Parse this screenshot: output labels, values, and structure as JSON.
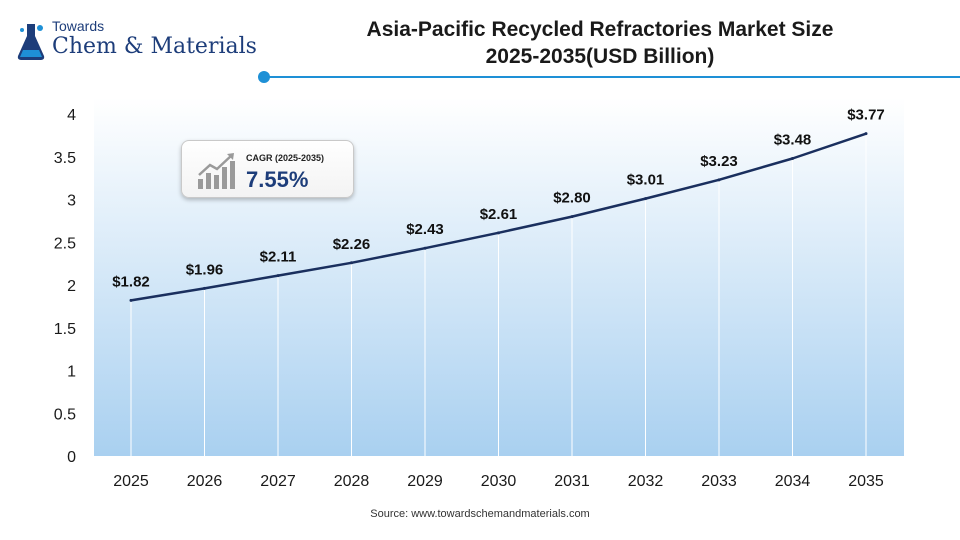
{
  "logo": {
    "line1": "Towards",
    "line2": "Chem & Materials"
  },
  "header": {
    "title_line1": "Asia-Pacific Recycled Refractories Market Size",
    "title_line2": "2025-2035(USD Billion)",
    "accent_color": "#1e90d6"
  },
  "cagr": {
    "label": "CAGR (2025-2035)",
    "value": "7.55%"
  },
  "source": "Source: www.towardschemandmaterials.com",
  "chart_data": {
    "type": "area",
    "title": "Asia-Pacific Recycled Refractories Market Size 2025-2035(USD Billion)",
    "categories": [
      "2025",
      "2026",
      "2027",
      "2028",
      "2029",
      "2030",
      "2031",
      "2032",
      "2033",
      "2034",
      "2035"
    ],
    "series": [
      {
        "values": [
          1.82,
          1.96,
          2.11,
          2.26,
          2.43,
          2.61,
          2.8,
          3.01,
          3.23,
          3.48,
          3.77
        ]
      }
    ],
    "data_labels": [
      "$1.82",
      "$1.96",
      "$2.11",
      "$2.26",
      "$2.43",
      "$2.61",
      "$2.80",
      "$3.01",
      "$3.23",
      "$3.48",
      "$3.77"
    ],
    "ylim": [
      0,
      4
    ],
    "yticks": [
      0,
      0.5,
      1,
      1.5,
      2,
      2.5,
      3,
      3.5,
      4
    ],
    "ytick_labels": [
      "0",
      "0.5",
      "1",
      "1.5",
      "2",
      "2.5",
      "3",
      "3.5",
      "4"
    ],
    "grid": "vertical",
    "line_color": "#1a2f5e"
  }
}
